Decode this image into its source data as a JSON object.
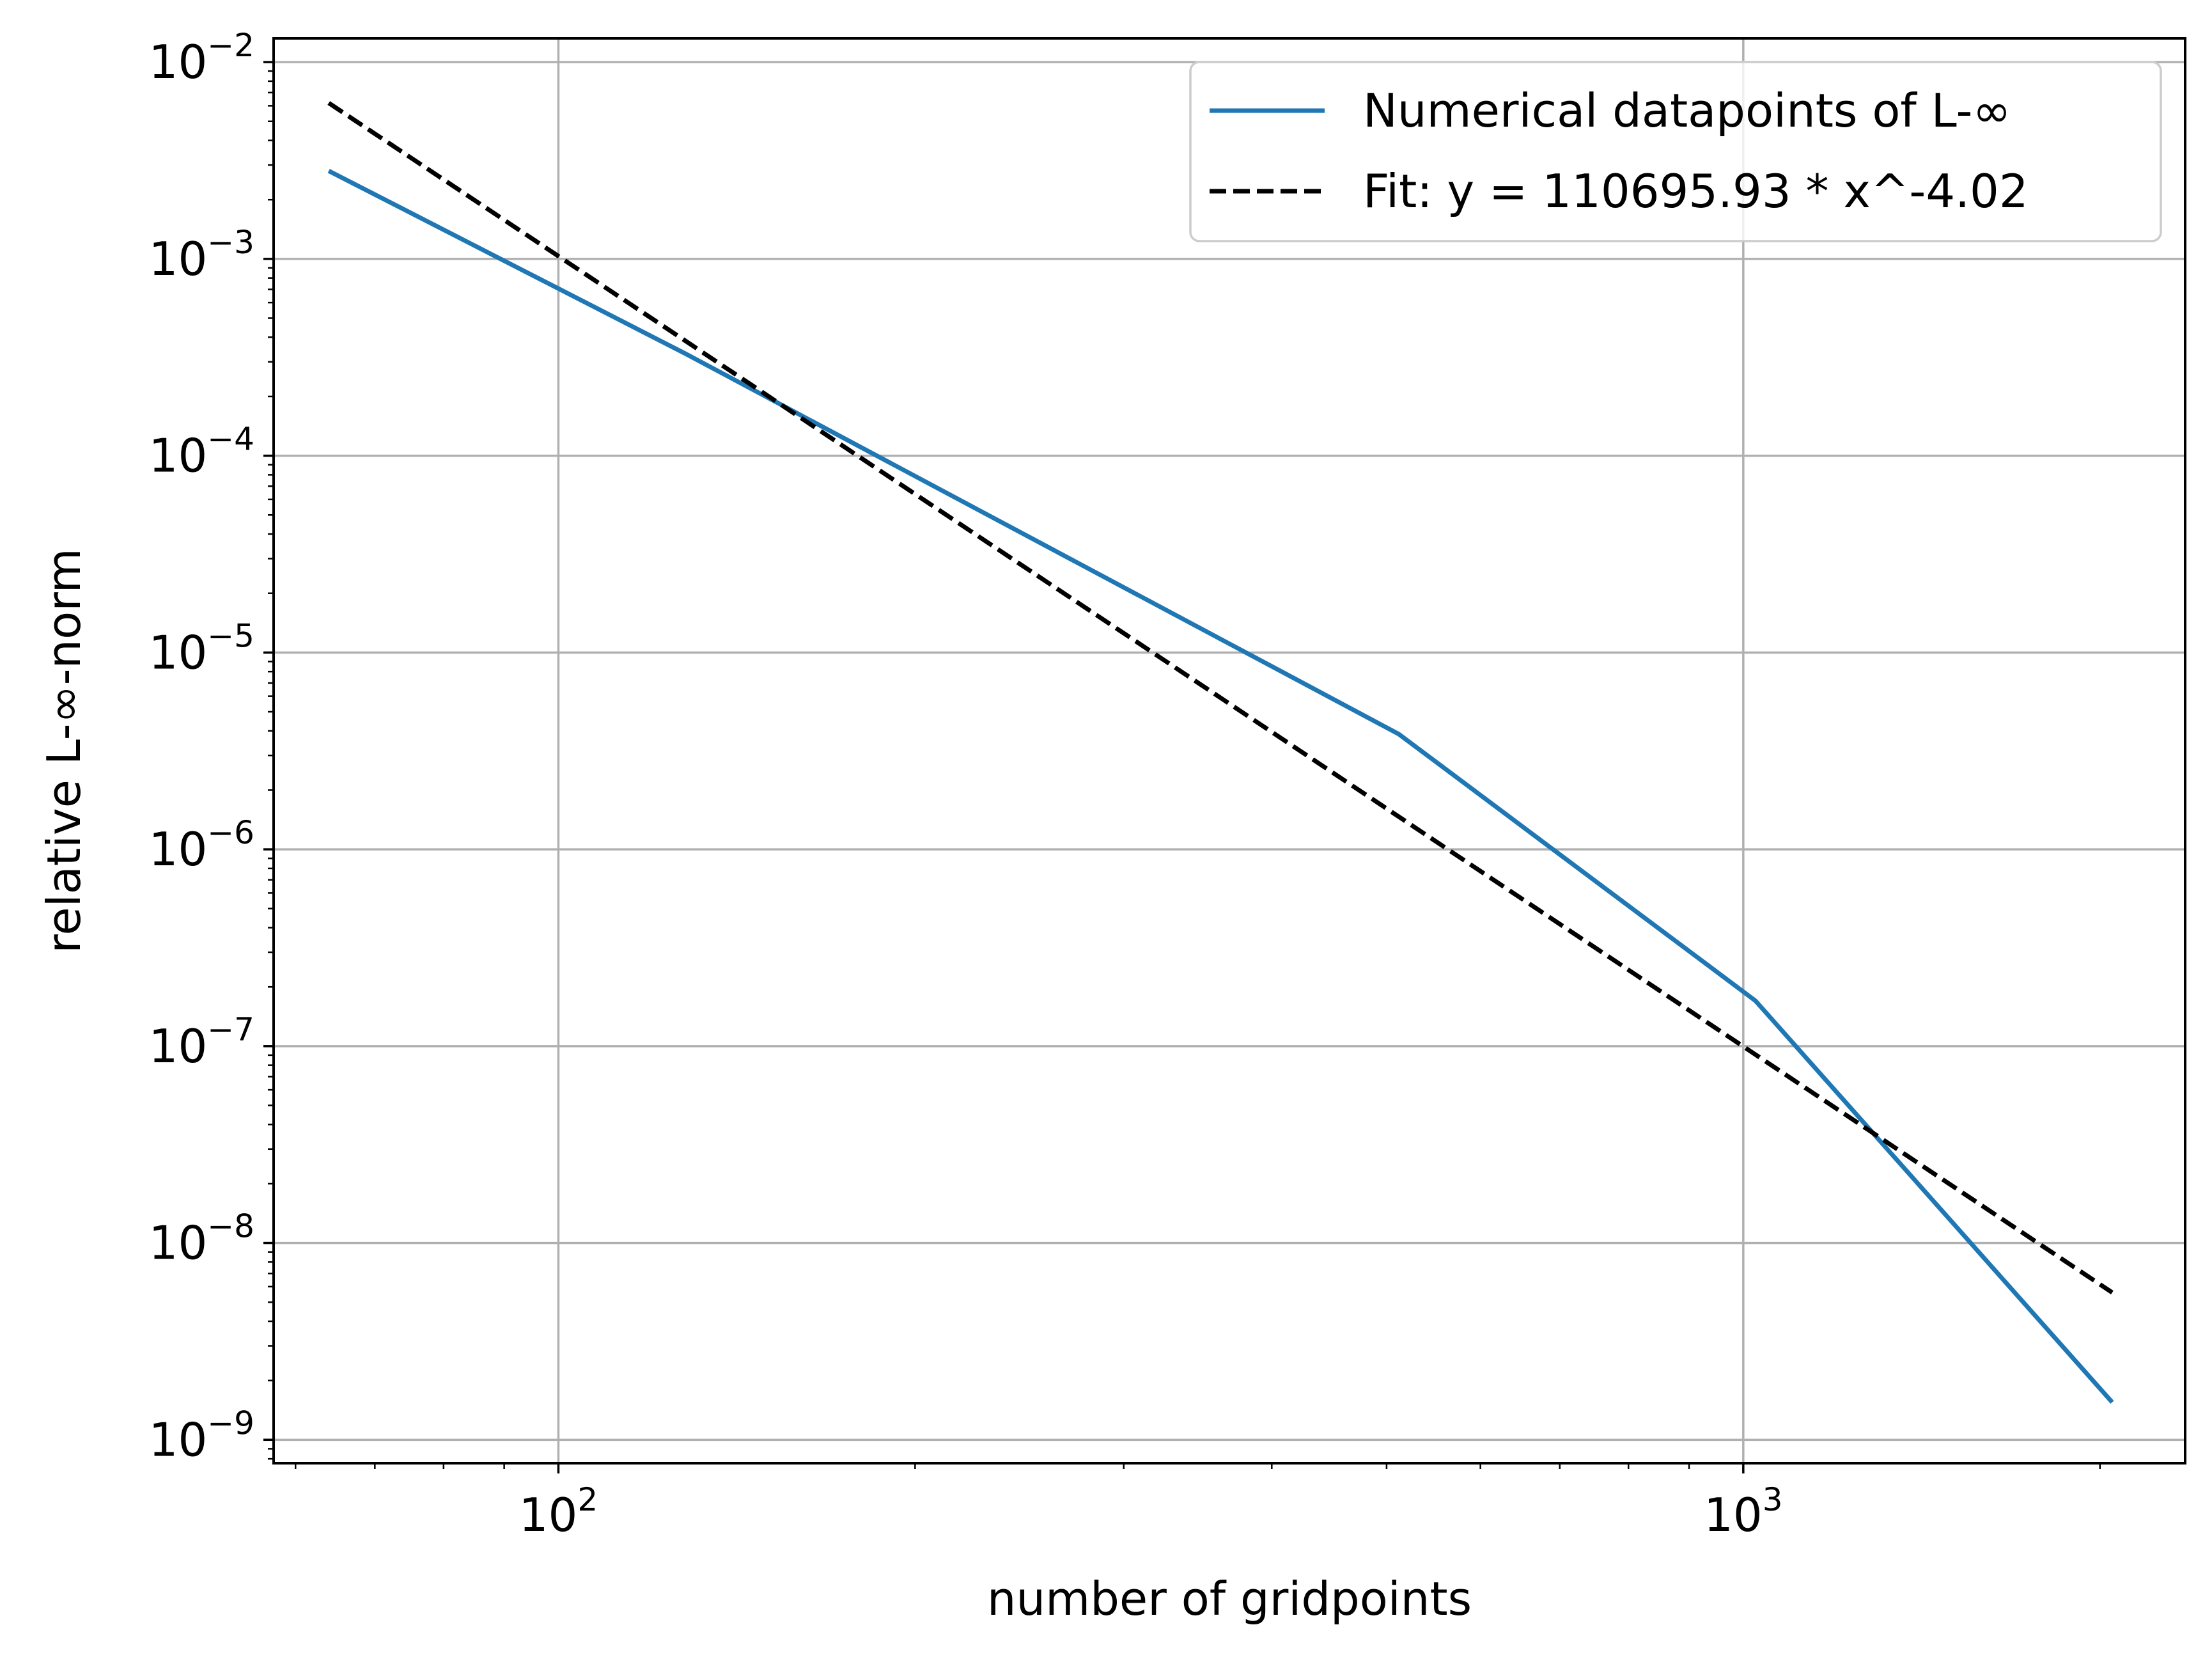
{
  "chart_data": {
    "type": "line",
    "xlabel": "number of gridpoints",
    "ylabel": "relative L-∞-norm",
    "xscale": "log",
    "yscale": "log",
    "xlim": [
      57.5,
      2360
    ],
    "ylim": [
      7.6e-10,
      0.0132
    ],
    "grid": true,
    "legend_position": "top-right",
    "x_ticks": [
      {
        "base": "10",
        "exp": "2",
        "value": 100
      },
      {
        "base": "10",
        "exp": "3",
        "value": 1000
      }
    ],
    "y_ticks": [
      {
        "base": "10",
        "exp": "−2",
        "value": 0.01
      },
      {
        "base": "10",
        "exp": "−3",
        "value": 0.001
      },
      {
        "base": "10",
        "exp": "−4",
        "value": 0.0001
      },
      {
        "base": "10",
        "exp": "−5",
        "value": 1e-05
      },
      {
        "base": "10",
        "exp": "−6",
        "value": 1e-06
      },
      {
        "base": "10",
        "exp": "−7",
        "value": 1e-07
      },
      {
        "base": "10",
        "exp": "−8",
        "value": 1e-08
      },
      {
        "base": "10",
        "exp": "−9",
        "value": 1e-09
      }
    ],
    "series": [
      {
        "name": "Numerical datapoints of L-∞",
        "color": "#1f77b4",
        "style": "solid",
        "x": [
          64,
          128,
          512,
          1024,
          2048
        ],
        "y": [
          0.0028,
          0.00033,
          3.85e-06,
          1.7e-07,
          1.55e-09
        ]
      },
      {
        "name": "Fit: y = 110695.93 * x^-4.02",
        "color": "#000000",
        "style": "dashed",
        "x": [
          64,
          2048
        ],
        "y": [
          0.0062,
          5.6e-09
        ]
      }
    ]
  }
}
